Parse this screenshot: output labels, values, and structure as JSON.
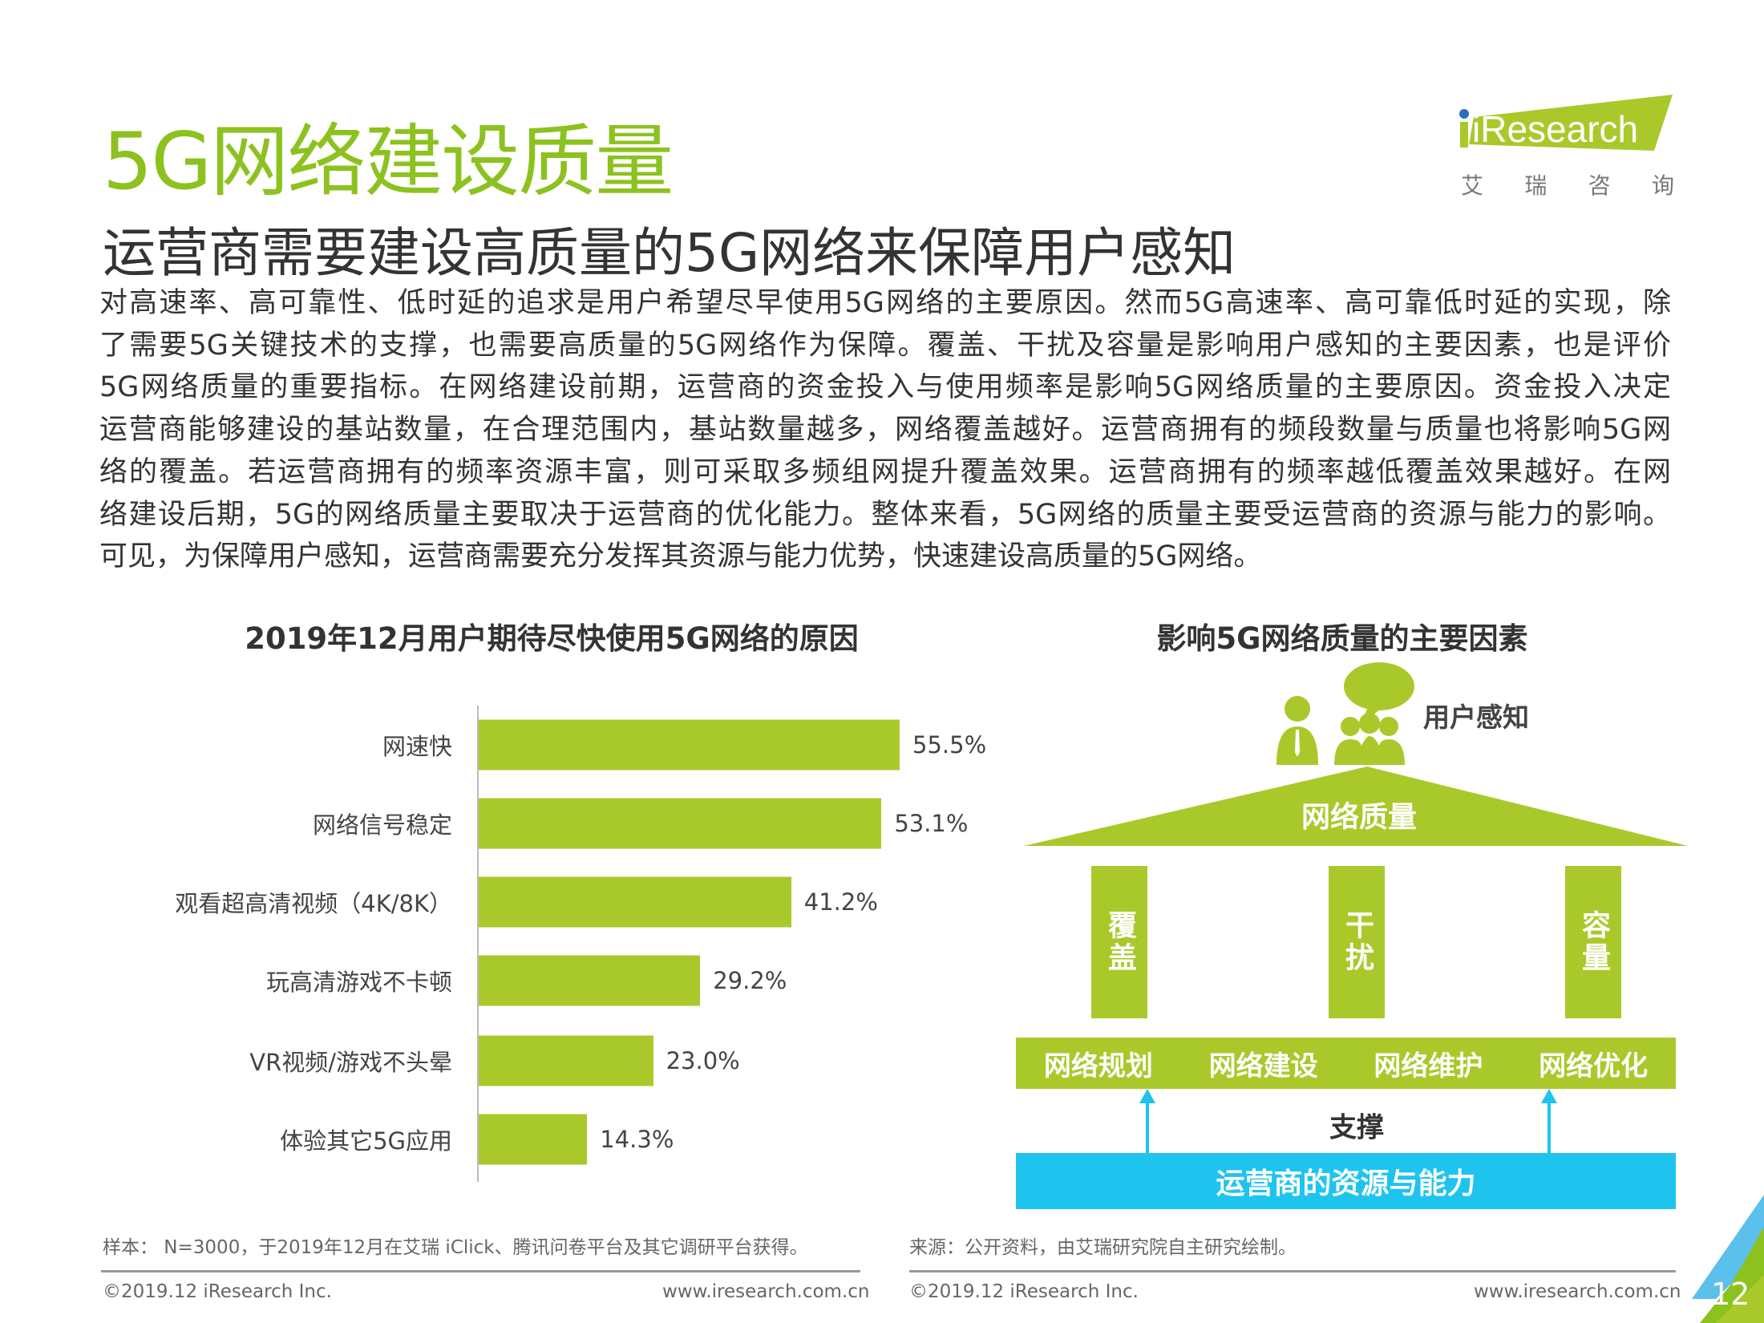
{
  "header": {
    "title": "5G网络建设质量",
    "subtitle": "运营商需要建设高质量的5G网络来保障用户感知",
    "logo": {
      "text": "iResearch",
      "cn": [
        "艾",
        "瑞",
        "咨",
        "询"
      ]
    }
  },
  "body_lines": [
    "对高速率、高可靠性、低时延的追求是用户希望尽早使用5G网络的主要原因。然而5G高速率、高可靠低时延的实现，除",
    "了需要5G关键技术的支撑，也需要高质量的5G网络作为保障。覆盖、干扰及容量是影响用户感知的主要因素，也是评价",
    "5G网络质量的重要指标。在网络建设前期，运营商的资金投入与使用频率是影响5G网络质量的主要原因。资金投入决定",
    "运营商能够建设的基站数量，在合理范围内，基站数量越多，网络覆盖越好。运营商拥有的频段数量与质量也将影响5G网",
    "络的覆盖。若运营商拥有的频率资源丰富，则可采取多频组网提升覆盖效果。运营商拥有的频率越低覆盖效果越好。在网",
    "络建设后期，5G的网络质量主要取决于运营商的优化能力。整体来看，5G网络的质量主要受运营商的资源与能力的影响。",
    "可见，为保障用户感知，运营商需要充分发挥其资源与能力优势，快速建设高质量的5G网络。"
  ],
  "chart_data": {
    "type": "bar",
    "orientation": "horizontal",
    "title": "2019年12月用户期待尽快使用5G网络的原因",
    "categories": [
      "网速快",
      "网络信号稳定",
      "观看超高清视频（4K/8K）",
      "玩高清游戏不卡顿",
      "VR视频/游戏不头晕",
      "体验其它5G应用"
    ],
    "values": [
      55.5,
      53.1,
      41.2,
      29.2,
      23.0,
      14.3
    ],
    "value_labels": [
      "55.5%",
      "53.1%",
      "41.2%",
      "29.2%",
      "23.0%",
      "14.3%"
    ],
    "unit": "%",
    "color": "#a9c92b"
  },
  "diagram": {
    "title": "影响5G网络质量的主要因素",
    "top": "用户感知",
    "roof": "网络质量",
    "pillars": [
      "覆盖",
      "干扰",
      "容量"
    ],
    "band": [
      "网络规划",
      "网络建设",
      "网络维护",
      "网络优化"
    ],
    "support": "支撑",
    "base": "运营商的资源与能力",
    "colors": {
      "green": "#a9c92b",
      "blue": "#1fc4ee"
    }
  },
  "footer": {
    "left_note": "样本： N=3000，于2019年12月在艾瑞 iClick、腾讯问卷平台及其它调研平台获得。",
    "right_note": "来源：公开资料，由艾瑞研究院自主研究绘制。",
    "copyright": "©2019.12 iResearch Inc.",
    "copyright2": "©2019.12  iResearch Inc.",
    "url": "www.iresearch.com.cn",
    "page": "12"
  }
}
